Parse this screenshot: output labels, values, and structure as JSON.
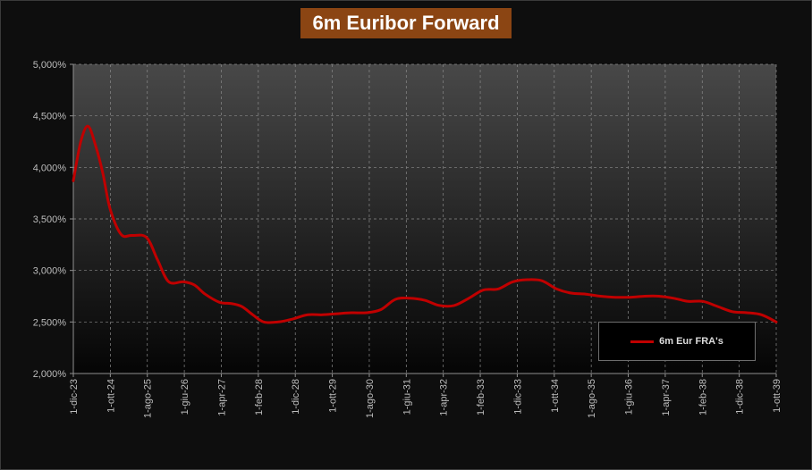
{
  "chart_data": {
    "type": "line",
    "title": "6m Euribor Forward",
    "xlabel": "",
    "ylabel": "",
    "x_tick_labels": [
      "1-dic-23",
      "1-ott-24",
      "1-ago-25",
      "1-giu-26",
      "1-apr-27",
      "1-feb-28",
      "1-dic-28",
      "1-ott-29",
      "1-ago-30",
      "1-giu-31",
      "1-apr-32",
      "1-feb-33",
      "1-dic-33",
      "1-ott-34",
      "1-ago-35",
      "1-giu-36",
      "1-apr-37",
      "1-feb-38",
      "1-dic-38",
      "1-ott-39"
    ],
    "y_tick_labels": [
      "2,000%",
      "2,500%",
      "3,000%",
      "3,500%",
      "4,000%",
      "4,500%",
      "5,000%"
    ],
    "ylim": [
      2.0,
      5.0
    ],
    "y_ticks": [
      2.0,
      2.5,
      3.0,
      3.5,
      4.0,
      4.5,
      5.0
    ],
    "grid": true,
    "legend_position": "bottom-right",
    "series": [
      {
        "name": "6m Eur FRA's",
        "color": "#c00000",
        "x": [
          "2023-12-01",
          "2024-02-01",
          "2024-04-01",
          "2024-06-01",
          "2024-08-01",
          "2024-10-01",
          "2025-01-01",
          "2025-04-01",
          "2025-08-01",
          "2025-11-01",
          "2026-02-01",
          "2026-06-01",
          "2026-09-01",
          "2026-12-01",
          "2027-04-01",
          "2027-07-01",
          "2027-10-01",
          "2028-01-01",
          "2028-04-01",
          "2028-08-01",
          "2028-12-01",
          "2029-04-01",
          "2029-08-01",
          "2029-12-01",
          "2030-04-01",
          "2030-08-01",
          "2030-12-01",
          "2031-04-01",
          "2031-08-01",
          "2031-12-01",
          "2032-04-01",
          "2032-08-01",
          "2032-12-01",
          "2033-04-01",
          "2033-08-01",
          "2033-12-01",
          "2034-04-01",
          "2034-08-01",
          "2034-12-01",
          "2035-04-01",
          "2035-08-01",
          "2035-12-01",
          "2036-04-01",
          "2036-08-01",
          "2036-12-01",
          "2037-04-01",
          "2037-08-01",
          "2037-12-01",
          "2038-04-01",
          "2038-08-01",
          "2038-12-01",
          "2039-04-01",
          "2039-08-01",
          "2039-12-01"
        ],
        "values": [
          3.87,
          4.25,
          4.4,
          4.22,
          3.95,
          3.6,
          3.35,
          3.34,
          3.32,
          3.1,
          2.89,
          2.89,
          2.86,
          2.77,
          2.69,
          2.68,
          2.65,
          2.57,
          2.5,
          2.5,
          2.53,
          2.57,
          2.57,
          2.58,
          2.59,
          2.59,
          2.62,
          2.72,
          2.73,
          2.71,
          2.66,
          2.66,
          2.73,
          2.81,
          2.82,
          2.89,
          2.91,
          2.9,
          2.82,
          2.78,
          2.77,
          2.75,
          2.74,
          2.74,
          2.75,
          2.75,
          2.73,
          2.7,
          2.7,
          2.65,
          2.6,
          2.59,
          2.57,
          2.5
        ]
      }
    ]
  }
}
